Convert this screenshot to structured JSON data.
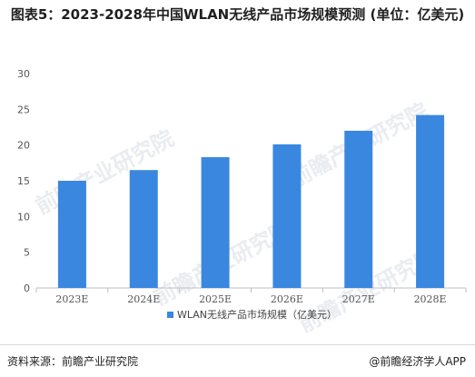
{
  "title": "图表5：2023-2028年中国WLAN无线产品市场规模预测 (单位：亿美元)",
  "footer": {
    "source": "资料来源：前瞻产业研究院",
    "brand": "@前瞻经济学人APP"
  },
  "watermark": "前瞻产业研究院",
  "colors": {
    "bar": "#3a87e0",
    "grid": "#d9d9d9",
    "axis": "#bfbfbf"
  },
  "chart_data": {
    "type": "bar",
    "categories": [
      "2023E",
      "2024E",
      "2025E",
      "2026E",
      "2027E",
      "2028E"
    ],
    "series": [
      {
        "name": "WLAN无线产品市场规模（亿美元）",
        "values": [
          15,
          16.5,
          18.3,
          20.1,
          22,
          24.2
        ]
      }
    ],
    "ylim": [
      0,
      30
    ],
    "yticks": [
      0,
      5,
      10,
      15,
      20,
      25,
      30
    ],
    "grid": false,
    "legend": "bottom-center"
  }
}
